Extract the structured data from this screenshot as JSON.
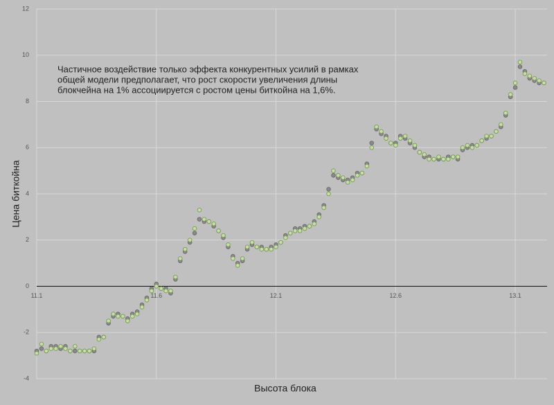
{
  "chart_data": {
    "type": "scatter",
    "annotation": [
      "Частичное воздействие только эффекта конкурентных усилий в рамках",
      "общей модели предполагает, что рост скорости увеличения длины",
      "блокчейна на 1% ассоциируется с ростом цены биткойна на 1,6%."
    ],
    "x_label": "Высота блока",
    "y_label": "Цена биткойна",
    "xlim": [
      11.1,
      13.233
    ],
    "ylim": [
      -4,
      12
    ],
    "xticks": [
      11.1,
      11.6,
      12.1,
      12.6,
      13.1
    ],
    "yticks": [
      -4,
      -2,
      0,
      2,
      4,
      6,
      8,
      10,
      12
    ],
    "grid": true,
    "x": [
      11.1,
      11.12,
      11.14,
      11.16,
      11.18,
      11.2,
      11.22,
      11.24,
      11.26,
      11.28,
      11.3,
      11.32,
      11.34,
      11.36,
      11.38,
      11.4,
      11.42,
      11.44,
      11.46,
      11.48,
      11.5,
      11.52,
      11.54,
      11.56,
      11.58,
      11.6,
      11.62,
      11.64,
      11.66,
      11.68,
      11.7,
      11.72,
      11.74,
      11.76,
      11.78,
      11.8,
      11.82,
      11.84,
      11.86,
      11.88,
      11.9,
      11.92,
      11.94,
      11.96,
      11.98,
      12.0,
      12.02,
      12.04,
      12.06,
      12.08,
      12.1,
      12.12,
      12.14,
      12.16,
      12.18,
      12.2,
      12.22,
      12.24,
      12.26,
      12.28,
      12.3,
      12.32,
      12.34,
      12.36,
      12.38,
      12.4,
      12.42,
      12.44,
      12.46,
      12.48,
      12.5,
      12.52,
      12.54,
      12.56,
      12.58,
      12.6,
      12.62,
      12.64,
      12.66,
      12.68,
      12.7,
      12.72,
      12.74,
      12.76,
      12.78,
      12.8,
      12.82,
      12.84,
      12.86,
      12.88,
      12.9,
      12.92,
      12.94,
      12.96,
      12.98,
      13.0,
      13.02,
      13.04,
      13.06,
      13.08,
      13.1,
      13.12,
      13.14,
      13.16,
      13.18,
      13.2,
      13.22
    ],
    "series": [
      {
        "color": "#8a8a8a",
        "stroke": "#6a6a6a",
        "values": [
          -2.8,
          -2.7,
          -2.8,
          -2.6,
          -2.6,
          -2.7,
          -2.6,
          -2.8,
          -2.8,
          -2.8,
          -2.8,
          -2.8,
          -2.8,
          -2.2,
          -2.2,
          -1.6,
          -1.3,
          -1.2,
          -1.3,
          -1.4,
          -1.2,
          -1.1,
          -0.8,
          -0.5,
          -0.1,
          0.1,
          -0.1,
          -0.1,
          -0.3,
          0.3,
          1.1,
          1.5,
          1.9,
          2.3,
          2.9,
          2.8,
          2.8,
          2.6,
          2.4,
          2.1,
          1.7,
          1.3,
          1.0,
          1.1,
          1.6,
          1.8,
          1.7,
          1.7,
          1.6,
          1.7,
          1.8,
          1.9,
          2.2,
          2.3,
          2.5,
          2.5,
          2.6,
          2.6,
          2.8,
          3.1,
          3.5,
          4.2,
          4.8,
          4.7,
          4.6,
          4.6,
          4.7,
          4.9,
          4.9,
          5.3,
          6.2,
          6.8,
          6.6,
          6.5,
          6.2,
          6.2,
          6.5,
          6.4,
          6.2,
          6.0,
          5.8,
          5.6,
          5.6,
          5.5,
          5.5,
          5.5,
          5.6,
          5.6,
          5.5,
          5.9,
          6.0,
          6.1,
          6.1,
          6.3,
          6.4,
          6.5,
          6.7,
          6.9,
          7.4,
          8.2,
          8.6,
          9.5,
          9.3,
          9.0,
          8.9,
          8.8,
          8.8
        ]
      },
      {
        "color": "#c5e0a0",
        "stroke": "#7a9a5a",
        "values": [
          -2.9,
          -2.5,
          -2.8,
          -2.7,
          -2.7,
          -2.6,
          -2.7,
          -2.8,
          -2.6,
          -2.8,
          -2.8,
          -2.8,
          -2.7,
          -2.3,
          -2.2,
          -1.5,
          -1.2,
          -1.3,
          -1.3,
          -1.5,
          -1.3,
          -1.2,
          -0.9,
          -0.6,
          -0.2,
          0.0,
          -0.1,
          -0.2,
          -0.2,
          0.4,
          1.2,
          1.6,
          2.0,
          2.5,
          3.3,
          2.9,
          2.8,
          2.7,
          2.4,
          2.2,
          1.8,
          1.2,
          0.9,
          1.2,
          1.7,
          1.9,
          1.7,
          1.6,
          1.6,
          1.6,
          1.7,
          1.9,
          2.1,
          2.3,
          2.4,
          2.4,
          2.5,
          2.6,
          2.7,
          3.0,
          3.4,
          4.0,
          5.0,
          4.8,
          4.7,
          4.5,
          4.6,
          4.8,
          4.9,
          5.2,
          6.0,
          6.9,
          6.7,
          6.4,
          6.2,
          6.1,
          6.4,
          6.5,
          6.3,
          6.1,
          5.8,
          5.7,
          5.5,
          5.5,
          5.6,
          5.5,
          5.5,
          5.6,
          5.6,
          6.0,
          6.1,
          6.0,
          6.1,
          6.3,
          6.5,
          6.5,
          6.7,
          7.0,
          7.5,
          8.3,
          8.8,
          9.7,
          9.2,
          9.1,
          9.0,
          8.9,
          8.8
        ]
      }
    ]
  }
}
